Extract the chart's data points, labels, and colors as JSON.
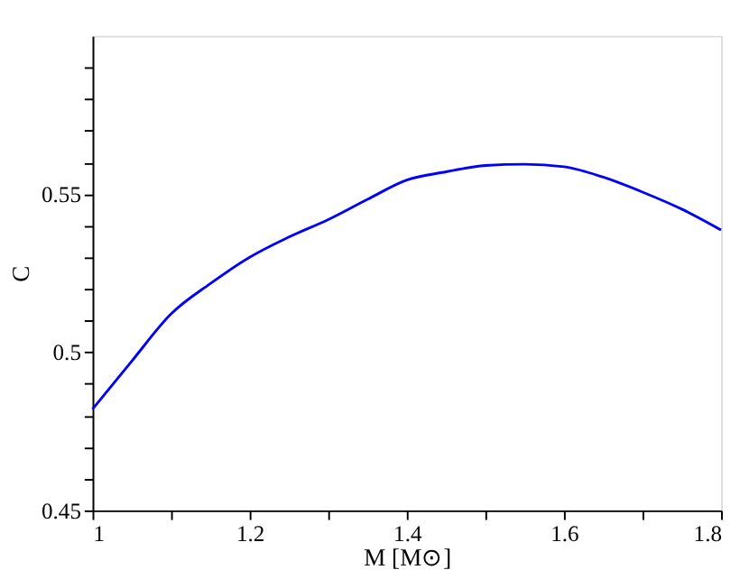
{
  "chart_data": {
    "type": "line",
    "xlabel": "M [M⊙]",
    "ylabel": "C",
    "x": [
      1,
      1.05,
      1.1,
      1.15,
      1.2,
      1.25,
      1.3,
      1.35,
      1.4,
      1.45,
      1.5,
      1.55,
      1.6,
      1.65,
      1.7,
      1.75,
      1.8
    ],
    "series": [
      {
        "color": "#0000ff",
        "values": [
          0.482,
          0.4972,
          0.5121,
          0.5217,
          0.53,
          0.5364,
          0.5419,
          0.5483,
          0.5544,
          0.557,
          0.559,
          0.5594,
          0.5586,
          0.5553,
          0.5506,
          0.5452,
          0.5386
        ]
      }
    ],
    "xlim": [
      1,
      1.8
    ],
    "ylim": [
      0.45,
      0.6
    ],
    "xticks": [
      1,
      {
        "value": 1.1,
        "label": null
      },
      1.2,
      {
        "value": 1.3,
        "label": null
      },
      1.4,
      {
        "value": 1.5,
        "label": null
      },
      1.6,
      {
        "value": 1.7,
        "label": null
      },
      1.8
    ],
    "yticks": [
      0.45,
      {
        "value": 0.46,
        "label": null
      },
      {
        "value": 0.47,
        "label": null
      },
      {
        "value": 0.48,
        "label": null
      },
      {
        "value": 0.49,
        "label": null
      },
      0.5,
      {
        "value": 0.51,
        "label": null
      },
      {
        "value": 0.52,
        "label": null
      },
      {
        "value": 0.53,
        "label": null
      },
      {
        "value": 0.54,
        "label": null
      },
      0.55,
      {
        "value": 0.56,
        "label": null
      },
      {
        "value": 0.57,
        "label": null
      },
      {
        "value": 0.58,
        "label": null
      },
      {
        "value": 0.59,
        "label": null
      }
    ],
    "grid": false,
    "line_style": "solid",
    "marker": "none"
  }
}
